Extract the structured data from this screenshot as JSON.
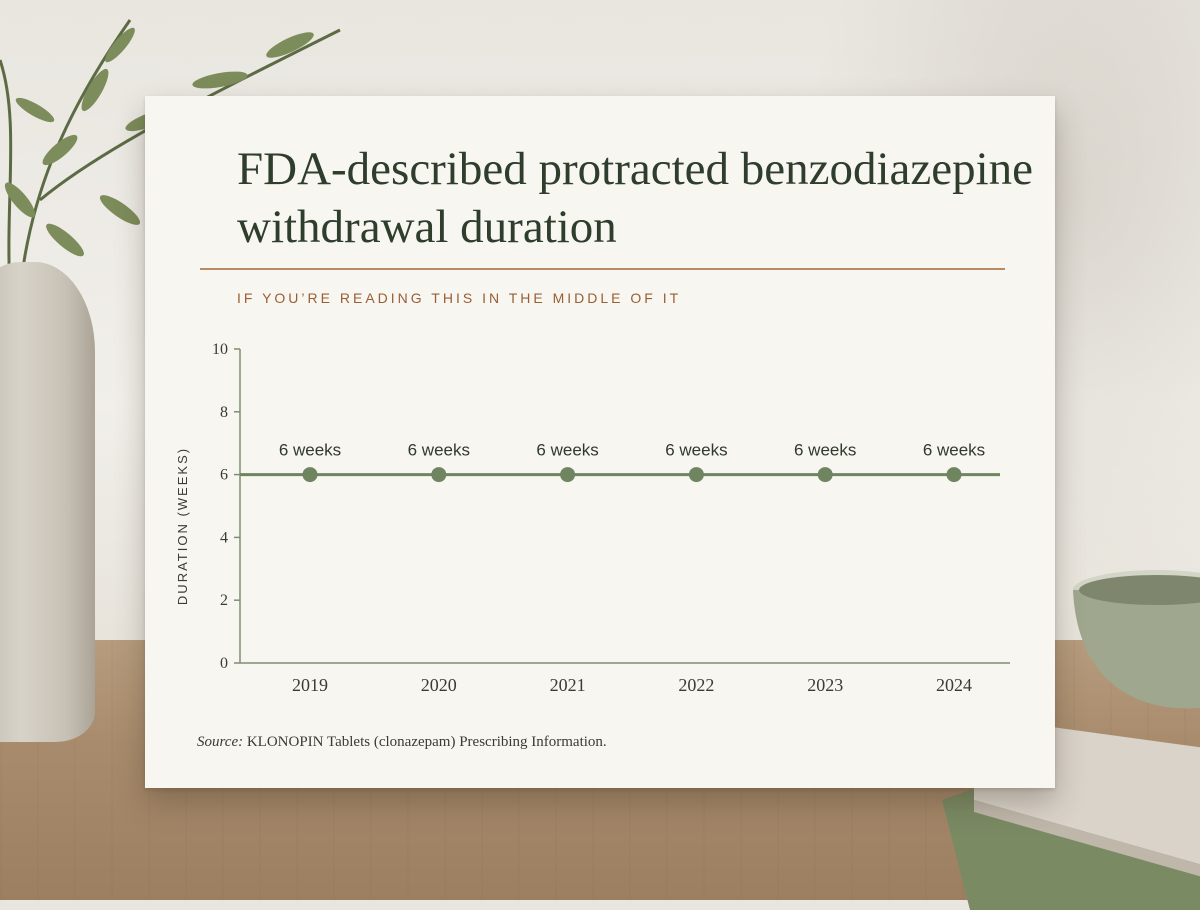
{
  "card": {
    "title": "FDA-described protracted benzodiazepine withdrawal duration",
    "subtitle": "IF YOU’RE READING THIS IN THE MIDDLE OF IT",
    "source_label": "Source:",
    "source_text": "KLONOPIN Tablets (clonazepam) Prescribing Information."
  },
  "colors": {
    "line": "#6e8560",
    "axis": "#7d8f70",
    "title": "#2e3d2c",
    "accent": "#9a5e34"
  },
  "chart_data": {
    "type": "line",
    "categories": [
      "2019",
      "2020",
      "2021",
      "2022",
      "2023",
      "2024"
    ],
    "values": [
      6,
      6,
      6,
      6,
      6,
      6
    ],
    "data_labels": [
      "6 weeks",
      "6 weeks",
      "6 weeks",
      "6 weeks",
      "6 weeks",
      "6 weeks"
    ],
    "ylabel": "DURATION (WEEKS)",
    "xlabel": "",
    "ylim": [
      0,
      10
    ],
    "yticks": [
      0,
      2,
      4,
      6,
      8,
      10
    ],
    "grid": false,
    "legend": "none"
  }
}
